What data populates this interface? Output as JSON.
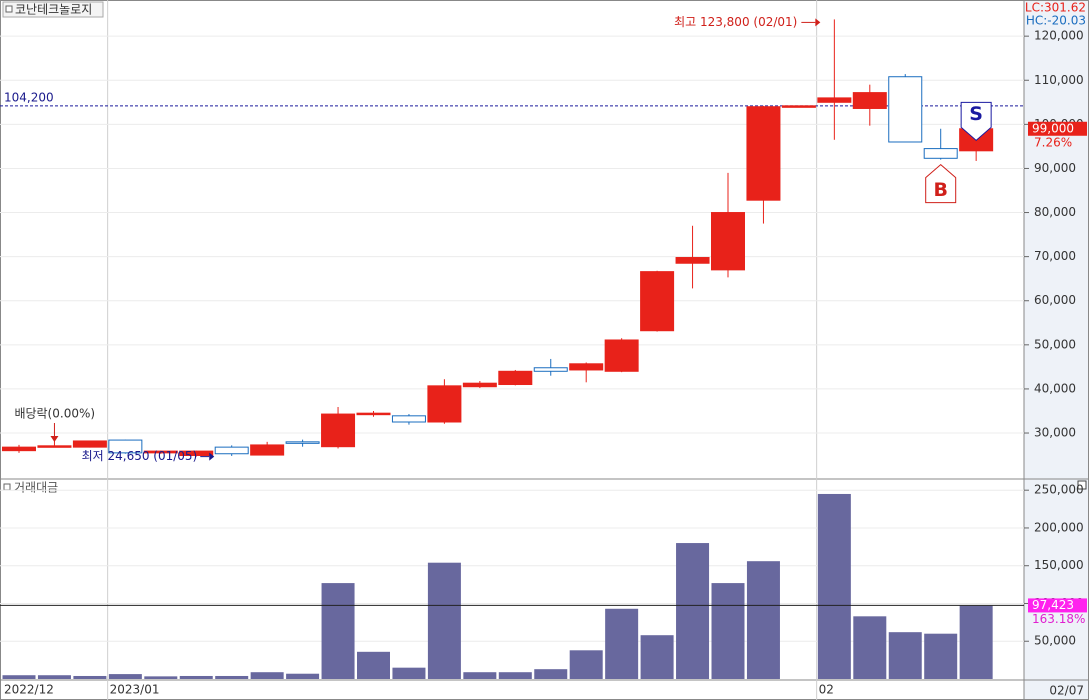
{
  "title": "코난테크놀로지",
  "lc": "LC:301.62",
  "hc": "HC:-20.03",
  "chart_data": [
    {
      "type": "candlestick",
      "categories": [
        "2022/12",
        null,
        null,
        "2023/01",
        null,
        null,
        null,
        null,
        null,
        null,
        null,
        null,
        null,
        null,
        null,
        null,
        null,
        null,
        null,
        null,
        null,
        null,
        null,
        "02",
        null,
        null,
        null,
        null
      ],
      "open": [
        26000,
        26900,
        26800,
        28400,
        25500,
        24900,
        26800,
        25000,
        28000,
        26900,
        34200,
        33900,
        32500,
        40500,
        41000,
        44800,
        44300,
        44000,
        53200,
        68500,
        67000,
        82800,
        104200,
        105000,
        103600,
        110800,
        94500,
        94000
      ],
      "high": [
        27300,
        28500,
        28300,
        28500,
        26000,
        26000,
        27200,
        28000,
        28500,
        35900,
        35000,
        34300,
        42200,
        41800,
        44300,
        46800,
        46000,
        51500,
        66800,
        77000,
        89000,
        104200,
        104200,
        123800,
        109000,
        111400,
        99000,
        99100
      ],
      "low": [
        25500,
        26800,
        26700,
        25300,
        25300,
        24650,
        24800,
        24900,
        26900,
        26500,
        33700,
        31900,
        32100,
        40200,
        40800,
        43000,
        41500,
        43800,
        53000,
        62800,
        65300,
        77500,
        104200,
        96500,
        99700,
        96000,
        92000,
        91700
      ],
      "close": [
        26800,
        27100,
        28200,
        25500,
        25900,
        25900,
        25300,
        27300,
        27700,
        34300,
        34500,
        32500,
        40700,
        41300,
        44000,
        44000,
        45700,
        51100,
        66600,
        69800,
        80000,
        104000,
        104200,
        106000,
        107200,
        96000,
        92300,
        99000
      ],
      "up_color": "#e8221a",
      "down_color": "#1a6dbf",
      "ylim": [
        19800,
        128200
      ],
      "yticks": [
        {
          "value": 30000,
          "label": "30,000"
        },
        {
          "value": 40000,
          "label": "40,000"
        },
        {
          "value": 50000,
          "label": "50,000"
        },
        {
          "value": 60000,
          "label": "60,000"
        },
        {
          "value": 70000,
          "label": "70,000"
        },
        {
          "value": 80000,
          "label": "80,000"
        },
        {
          "value": 90000,
          "label": "90,000"
        },
        {
          "value": 100000,
          "label": "100,000"
        },
        {
          "value": 110000,
          "label": "110,000"
        },
        {
          "value": 120000,
          "label": "120,000"
        }
      ],
      "grid": true,
      "reference_line": {
        "value": 104200,
        "label": "104,200"
      },
      "last_price": {
        "value": 99000,
        "label": "99,000"
      },
      "change_label": "7.26%",
      "annotations": {
        "high": "최고 123,800 (02/01)",
        "low": "최저 24,650 (01/05)",
        "ex_dividend": "배당락(0.00%)"
      },
      "signals": [
        "B",
        "S"
      ],
      "last_date": "02/07"
    },
    {
      "type": "bar",
      "title": "거래대금",
      "color": "#68689e",
      "values": [
        5000,
        5000,
        4000,
        6500,
        3500,
        4000,
        4000,
        9000,
        7000,
        127000,
        36000,
        15000,
        154000,
        9000,
        9000,
        13000,
        38000,
        93000,
        58000,
        180000,
        127000,
        156000,
        null,
        245000,
        83000,
        62000,
        60000,
        97000
      ],
      "ylim": [
        0,
        263500
      ],
      "yticks": [
        {
          "value": 50000,
          "label": "50,000"
        },
        {
          "value": 100000,
          "label": "100,000"
        },
        {
          "value": 150000,
          "label": "150,000"
        },
        {
          "value": 200000,
          "label": "200,000"
        },
        {
          "value": 250000,
          "label": "250,000"
        }
      ],
      "grid": true,
      "average": {
        "value": 97423,
        "label": "97,423"
      },
      "ratio_label": "163.18%"
    }
  ]
}
